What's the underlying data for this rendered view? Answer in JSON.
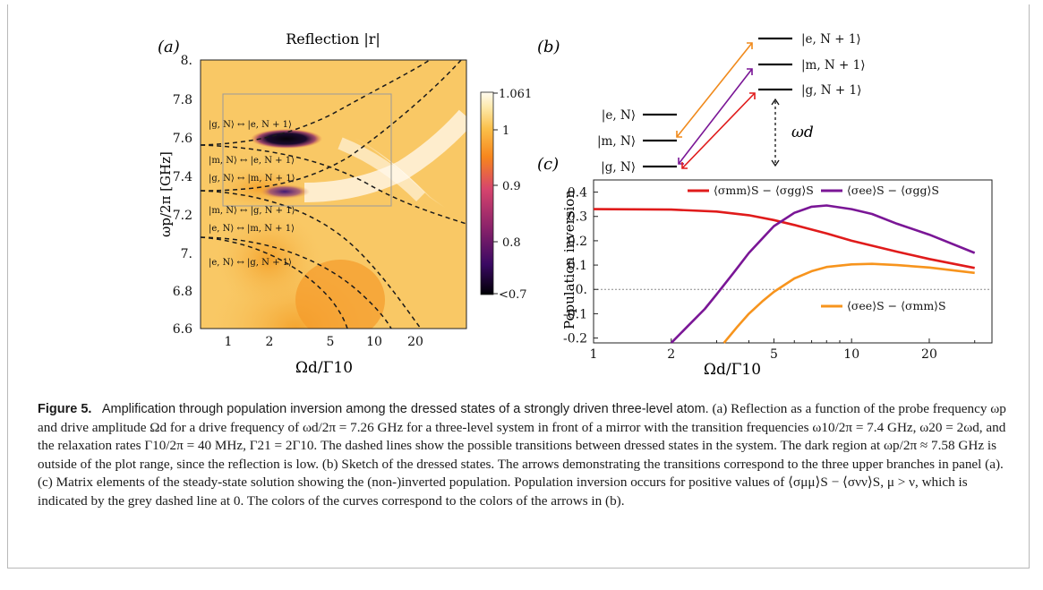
{
  "panel_a": {
    "label": "(a)",
    "title": "Reflection |r|",
    "xlabel": "Ωd/Γ10",
    "ylabel": "ωp/2π [GHz]",
    "x_ticks": [
      "1",
      "2",
      "5",
      "10",
      "20"
    ],
    "y_ticks": [
      "8.",
      "7.8",
      "7.6",
      "7.4",
      "7.2",
      "7.",
      "6.8",
      "6.6"
    ],
    "colorbar_ticks": [
      "1.061",
      "1",
      "0.9",
      "0.8",
      "<0.7"
    ],
    "transition_labels": [
      "|g, N⟩ ↔ |e, N + 1⟩",
      "|m, N⟩ ↔ |e, N + 1⟩",
      "|g, N⟩ ↔ |m, N + 1⟩",
      "|m, N⟩ ↔ |g, N + 1⟩",
      "|e, N⟩ ↔ |m, N + 1⟩",
      "|e, N⟩ ↔ |g, N + 1⟩"
    ]
  },
  "panel_b": {
    "label": "(b)",
    "upper_levels": [
      "|e, N + 1⟩",
      "|m, N + 1⟩",
      "|g, N + 1⟩"
    ],
    "lower_levels": [
      "|e, N⟩",
      "|m, N⟩",
      "|g, N⟩"
    ],
    "drive_label": "ωd",
    "arrow_colors": [
      "#f08a1c",
      "#7a1696",
      "#e01b1b"
    ]
  },
  "panel_c": {
    "label": "(c)",
    "chart_data": {
      "type": "line",
      "xlabel": "Ωd/Γ10",
      "ylabel": "Population inversion",
      "x_scale": "log",
      "xlim": [
        1,
        35
      ],
      "ylim": [
        -0.22,
        0.45
      ],
      "x_ticks": [
        "1",
        "2",
        "5",
        "10",
        "20"
      ],
      "y_ticks": [
        "0.4",
        "0.3",
        "0.2",
        "0.1",
        "0.",
        "-0.1",
        "-0.2"
      ],
      "zero_line": "grey dotted at 0",
      "series": [
        {
          "name": "⟨σmm⟩S − ⟨σgg⟩S",
          "color": "#e01b1b",
          "x": [
            1,
            2,
            3,
            4,
            5,
            6,
            8,
            10,
            15,
            20,
            30
          ],
          "y": [
            0.33,
            0.328,
            0.32,
            0.305,
            0.285,
            0.265,
            0.23,
            0.2,
            0.155,
            0.125,
            0.088
          ]
        },
        {
          "name": "⟨σee⟩S − ⟨σgg⟩S",
          "color": "#7a1696",
          "x": [
            2,
            2.3,
            2.7,
            3,
            3.5,
            4,
            5,
            6,
            7,
            8,
            10,
            12,
            15,
            20,
            30
          ],
          "y": [
            -0.22,
            -0.155,
            -0.08,
            -0.02,
            0.07,
            0.15,
            0.26,
            0.315,
            0.34,
            0.345,
            0.33,
            0.31,
            0.27,
            0.225,
            0.15
          ]
        },
        {
          "name": "⟨σee⟩S − ⟨σmm⟩S",
          "color": "#f7941d",
          "x": [
            3.2,
            3.6,
            4,
            4.5,
            5,
            6,
            7,
            8,
            10,
            12,
            15,
            20,
            30
          ],
          "y": [
            -0.22,
            -0.155,
            -0.1,
            -0.05,
            -0.01,
            0.045,
            0.075,
            0.092,
            0.103,
            0.105,
            0.1,
            0.09,
            0.068
          ]
        }
      ]
    }
  },
  "caption": {
    "label": "Figure 5.",
    "title": "Amplification through population inversion among the dressed states of a strongly driven three-level atom.",
    "body": "(a) Reflection as a function of the probe frequency ωp and drive amplitude Ωd for a drive frequency of ωd/2π = 7.26 GHz for a three-level system in front of a mirror with the transition frequencies ω10/2π = 7.4 GHz, ω20 = 2ωd, and the relaxation rates Γ10/2π = 40 MHz, Γ21 = 2Γ10. The dashed lines show the possible transitions between dressed states in the system. The dark region at ωp/2π ≈ 7.58 GHz is outside of the plot range, since the reflection is low. (b) Sketch of the dressed states. The arrows demonstrating the transitions correspond to the three upper branches in panel (a). (c) Matrix elements of the steady-state solution showing the (non-)inverted population. Population inversion occurs for positive values of ⟨σμμ⟩S − ⟨σνν⟩S, μ > ν, which is indicated by the grey dashed line at 0. The colors of the curves correspond to the colors of the arrows in (b)."
  }
}
